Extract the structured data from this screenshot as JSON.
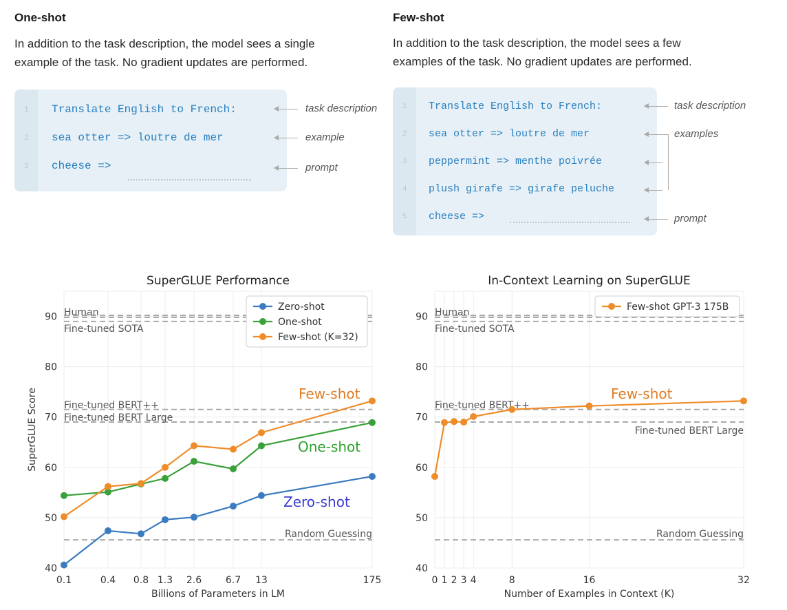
{
  "one_shot": {
    "title": "One-shot",
    "desc_line1": "In addition to the task description, the model sees a single",
    "desc_line2": "example of the task. No gradient updates are performed.",
    "lines": [
      "Translate English to French:",
      "sea otter => loutre de mer",
      "cheese =>"
    ],
    "line_numbers": [
      "1",
      "2",
      "3"
    ],
    "annotations": [
      "task description",
      "example",
      "prompt"
    ]
  },
  "few_shot": {
    "title": "Few-shot",
    "desc_line1": "In addition to the task description, the model sees a few",
    "desc_line2": "examples of the task. No gradient updates are performed.",
    "lines": [
      "Translate English to French:",
      "sea otter => loutre de mer",
      "peppermint => menthe poivrée",
      "plush girafe => girafe peluche",
      "cheese =>"
    ],
    "line_numbers": [
      "1",
      "2",
      "3",
      "4",
      "5"
    ],
    "annotations": [
      "task description",
      "examples",
      "prompt"
    ]
  },
  "chart_data": [
    {
      "type": "line",
      "title": "SuperGLUE Performance",
      "xlabel": "Billions of Parameters in LM",
      "ylabel": "SuperGLUE Score",
      "ylim": [
        40,
        95
      ],
      "yticks": [
        "40",
        "50",
        "60",
        "70",
        "80",
        "90"
      ],
      "categories": [
        "0.1",
        "0.4",
        "0.8",
        "1.3",
        "2.6",
        "6.7",
        "13",
        "175"
      ],
      "x": [
        0.1,
        0.4,
        0.8,
        1.3,
        2.6,
        6.7,
        13,
        175
      ],
      "series": [
        {
          "name": "Zero-shot",
          "color": "#3b7bbf",
          "values": [
            40.6,
            47.4,
            46.8,
            49.6,
            50.1,
            52.3,
            54.4,
            58.2
          ]
        },
        {
          "name": "One-shot",
          "color": "#3aa13a",
          "values": [
            54.4,
            55.1,
            56.7,
            57.8,
            61.2,
            59.7,
            64.3,
            68.9
          ]
        },
        {
          "name": "Few-shot (K=32)",
          "color": "#ef8c2a",
          "values": [
            50.2,
            56.2,
            56.8,
            60.0,
            64.3,
            63.6,
            66.9,
            73.2
          ]
        }
      ],
      "reference_lines": [
        {
          "label": "Human",
          "value": 89.8,
          "double": true
        },
        {
          "label": "Fine-tuned SOTA",
          "value": 89.0
        },
        {
          "label": "Fine-tuned BERT++",
          "value": 71.5
        },
        {
          "label": "Fine-tuned BERT Large",
          "value": 69.0
        },
        {
          "label": "Random Guessing",
          "value": 45.6
        }
      ],
      "inline_labels": [
        {
          "text": "Few-shot",
          "color": "#e07b24"
        },
        {
          "text": "One-shot",
          "color": "#2ea02e"
        },
        {
          "text": "Zero-shot",
          "color": "#3b3bd0"
        }
      ],
      "legend": "top-right",
      "grid": true
    },
    {
      "type": "line",
      "title": "In-Context Learning on SuperGLUE",
      "xlabel": "Number of Examples in Context (K)",
      "ylim": [
        40,
        95
      ],
      "yticks": [
        "40",
        "50",
        "60",
        "70",
        "80",
        "90"
      ],
      "xticks": [
        "0",
        "1",
        "2",
        "3",
        "4",
        "8",
        "16",
        "32"
      ],
      "x": [
        0,
        1,
        2,
        3,
        4,
        8,
        16,
        32
      ],
      "series": [
        {
          "name": "Few-shot GPT-3 175B",
          "color": "#ef8c2a",
          "values": [
            58.2,
            68.9,
            69.1,
            69.0,
            70.1,
            71.5,
            72.2,
            73.2
          ]
        }
      ],
      "reference_lines": [
        {
          "label": "Human",
          "value": 89.8,
          "double": true
        },
        {
          "label": "Fine-tuned SOTA",
          "value": 89.0
        },
        {
          "label": "Fine-tuned BERT++",
          "value": 71.5
        },
        {
          "label": "Fine-tuned BERT Large",
          "value": 69.0
        },
        {
          "label": "Random Guessing",
          "value": 45.6
        }
      ],
      "inline_labels": [
        {
          "text": "Few-shot",
          "color": "#e07b24"
        }
      ],
      "legend": "top-right",
      "grid": true
    }
  ]
}
